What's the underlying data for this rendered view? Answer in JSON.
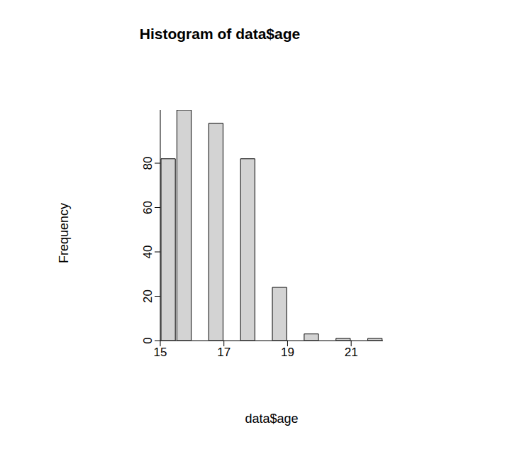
{
  "chart_data": {
    "type": "histogram",
    "title": "Histogram of data$age",
    "x_label": "data$age",
    "y_label": "Frequency",
    "bins": [
      15,
      15.5,
      16,
      16.5,
      17,
      17.5,
      18,
      18.5,
      19,
      19.5,
      20,
      20.5,
      21,
      21.5,
      22
    ],
    "values": [
      82,
      104,
      0,
      98,
      0,
      82,
      0,
      24,
      0,
      3,
      0,
      1,
      0,
      1
    ],
    "color": "#d3d3d3",
    "xlim": [
      15,
      22
    ],
    "xticks": [
      15,
      17,
      19,
      21
    ],
    "ylim": [
      0,
      104
    ],
    "yticks": [
      0,
      20,
      40,
      60,
      80
    ],
    "grid": false
  }
}
